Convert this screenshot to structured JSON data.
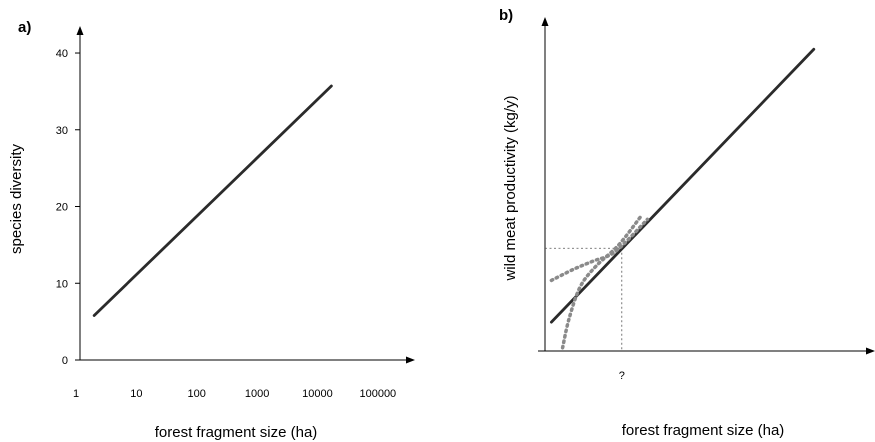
{
  "chart_data": [
    {
      "panel_label": "a)",
      "type": "line",
      "xlabel": "forest fragment size (ha)",
      "ylabel": "species diversity",
      "x_scale": "log",
      "x_ticks": [
        {
          "value": 1,
          "label": "1"
        },
        {
          "value": 10,
          "label": "10"
        },
        {
          "value": 100,
          "label": "100"
        },
        {
          "value": 1000,
          "label": "1000"
        },
        {
          "value": 10000,
          "label": "10000"
        },
        {
          "value": 100000,
          "label": "100000"
        }
      ],
      "y_ticks": [
        {
          "value": 0,
          "label": "0"
        },
        {
          "value": 10,
          "label": "10"
        },
        {
          "value": 20,
          "label": "20"
        },
        {
          "value": 30,
          "label": "30"
        },
        {
          "value": 40,
          "label": "40"
        }
      ],
      "xlim": [
        1,
        200000
      ],
      "ylim": [
        0,
        43
      ],
      "series": [
        {
          "x": [
            2,
            17000
          ],
          "y": [
            5.8,
            35.7
          ]
        }
      ],
      "grid": false
    },
    {
      "panel_label": "b)",
      "type": "line",
      "xlabel": "forest fragment size (ha)",
      "ylabel": "wild meat productivity (kg/y)",
      "x_annotation": "?",
      "xlim": [
        0,
        10
      ],
      "ylim": [
        0,
        10
      ],
      "series": [
        {
          "style": "solid",
          "x": [
            0.2,
            8.4
          ],
          "y": [
            0.9,
            9.4
          ]
        },
        {
          "style": "dotted",
          "x": [
            0.2,
            0.9,
            1.5,
            2.2,
            3.2
          ],
          "y": [
            2.2,
            2.55,
            2.8,
            3.1,
            4.1
          ]
        },
        {
          "style": "dotted",
          "x": [
            0.55,
            0.75,
            1.1,
            1.6,
            2.3,
            3.0
          ],
          "y": [
            0.1,
            1.0,
            2.0,
            2.65,
            3.3,
            4.2
          ]
        }
      ],
      "guide_x": 2.4,
      "guide_y": 3.2,
      "grid": false
    }
  ]
}
